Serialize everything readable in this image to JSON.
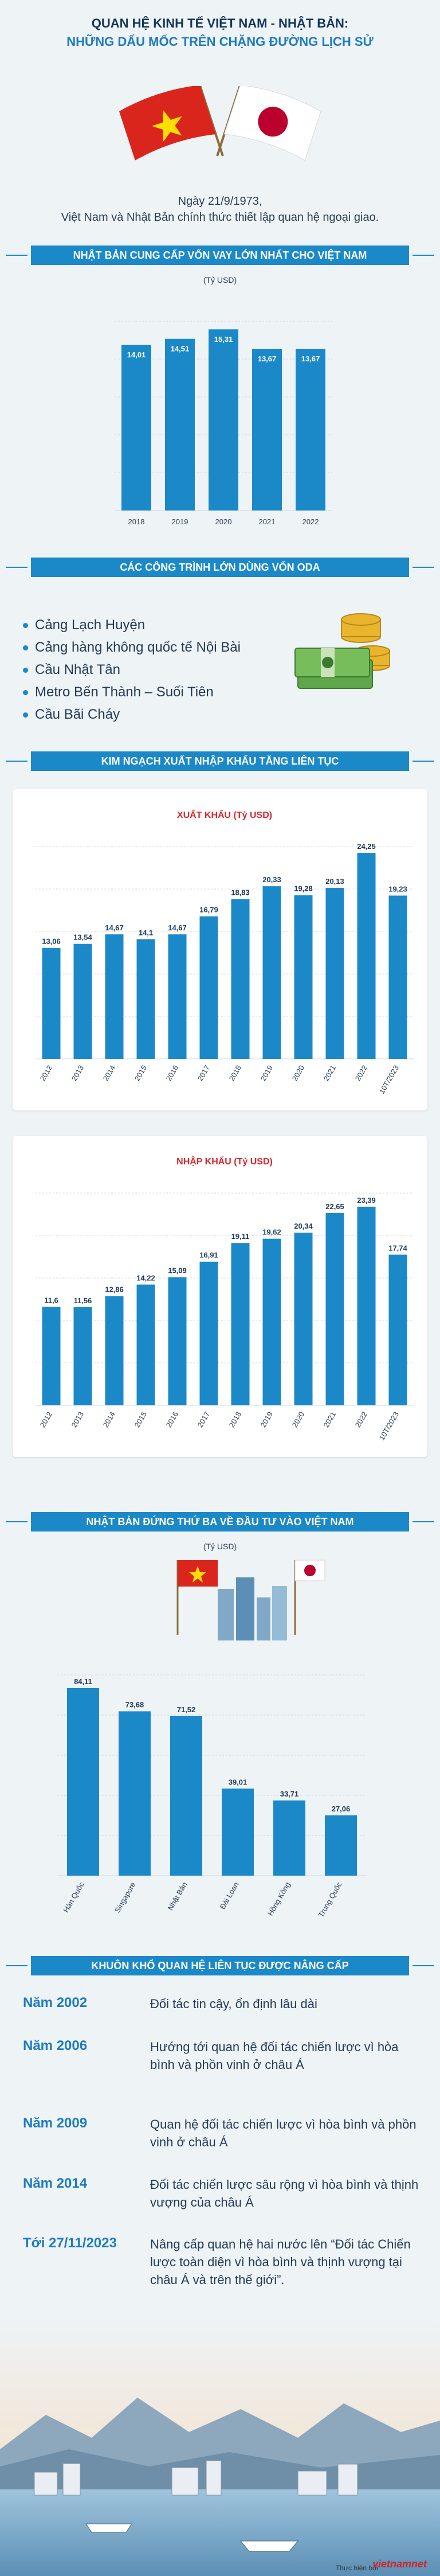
{
  "header": {
    "title": "QUAN HỆ KINH TẾ VIỆT NAM - NHẬT BẢN:",
    "subtitle": "NHỮNG DẤU MỐC TRÊN CHẶNG ĐƯỜNG LỊCH SỬ",
    "date_line": "Ngày 21/9/1973,",
    "intro_line": "Việt Nam và Nhật Bản chính thức thiết lập quan hệ ngoại giao."
  },
  "sections": {
    "loans": "NHẬT BẢN CUNG CẤP VỐN VAY LỚN NHẤT CHO VIỆT NAM",
    "oda": "CÁC CÔNG TRÌNH LỚN DÙNG VỐN ODA",
    "trade": "KIM NGẠCH XUẤT NHẬP KHẨU TĂNG LIÊN TỤC",
    "investment": "NHẬT BẢN ĐỨNG THỨ BA VỀ ĐẦU TƯ VÀO VIỆT NAM",
    "framework": "KHUÔN KHỔ QUAN HỆ LIÊN TỤC ĐƯỢC NÂNG CẤP"
  },
  "unit_label": "(Tỷ USD)",
  "oda_projects": [
    "Cảng Lạch Huyện",
    "Cảng hàng không quốc tế Nội Bài",
    "Cầu Nhật Tân",
    "Metro Bến Thành – Suối Tiên",
    "Cầu Bãi Cháy"
  ],
  "milestones": [
    {
      "year": "Năm 2002",
      "text": "Đối tác tin cậy, ổn định lâu dài"
    },
    {
      "year": "Năm 2006",
      "text": "Hướng tới quan hệ đối tác chiến lược vì hòa bình và phồn vinh ở châu Á"
    },
    {
      "year": "Năm 2009",
      "text": "Quan hệ đối tác chiến lược vì hòa bình và phồn vinh ở châu Á"
    },
    {
      "year": "Năm 2014",
      "text": "Đối tác chiến lược sâu rộng vì hòa bình và thịnh vượng của châu Á"
    },
    {
      "year": "Tới 27/11/2023",
      "text": "Nâng cấp quan hệ hai nước lên “Đối tác Chiến lược toàn diện vì hòa bình và thịnh vượng tại châu Á và trên thế giới”."
    }
  ],
  "footer": {
    "credit": "Thực hiện bởi",
    "logo": "vietnamnet"
  },
  "colors": {
    "bar": "#1b89c8",
    "accent": "#1e7bbf",
    "title": "#13365a",
    "flag_vn": "#da251d",
    "flag_jp_circle": "#bc002d"
  },
  "chart_data": [
    {
      "type": "bar",
      "title": "NHẬT BẢN CUNG CẤP VỐN VAY LỚN NHẤT CHO VIỆT NAM",
      "ylabel": "(Tỷ USD)",
      "categories": [
        "2018",
        "2019",
        "2020",
        "2021",
        "2022"
      ],
      "values": [
        14.01,
        14.51,
        15.31,
        13.67,
        13.67
      ],
      "labels": [
        "14,01",
        "14,51",
        "15,31",
        "13,67",
        "13,67"
      ],
      "ylim": [
        0,
        16
      ]
    },
    {
      "type": "bar",
      "title": "XUẤT KHẨU (Tỷ USD)",
      "categories": [
        "2012",
        "2013",
        "2014",
        "2015",
        "2016",
        "2017",
        "2018",
        "2019",
        "2020",
        "2021",
        "2022",
        "10T/2023"
      ],
      "values": [
        13.06,
        13.54,
        14.67,
        14.1,
        14.67,
        16.79,
        18.83,
        20.33,
        19.28,
        20.13,
        24.25,
        19.23
      ],
      "labels": [
        "13,06",
        "13,54",
        "14,67",
        "14,1",
        "14,67",
        "16,79",
        "18,83",
        "20,33",
        "19,28",
        "20,13",
        "24,25",
        "19,23"
      ],
      "ylim": [
        0,
        25
      ]
    },
    {
      "type": "bar",
      "title": "NHẬP KHẨU (Tỷ USD)",
      "categories": [
        "2012",
        "2013",
        "2014",
        "2015",
        "2016",
        "2017",
        "2018",
        "2019",
        "2020",
        "2021",
        "2022",
        "10T/2023"
      ],
      "values": [
        11.6,
        11.56,
        12.86,
        14.22,
        15.09,
        16.91,
        19.11,
        19.62,
        20.34,
        22.65,
        23.39,
        17.74
      ],
      "labels": [
        "11,6",
        "11,56",
        "12,86",
        "14,22",
        "15,09",
        "16,91",
        "19,11",
        "19,62",
        "20,34",
        "22,65",
        "23,39",
        "17,74"
      ],
      "ylim": [
        0,
        25
      ]
    },
    {
      "type": "bar",
      "title": "NHẬT BẢN ĐỨNG THỨ BA VỀ ĐẦU TƯ VÀO VIỆT NAM",
      "ylabel": "(Tỷ USD)",
      "categories": [
        "Hàn Quốc",
        "Singapore",
        "Nhật Bản",
        "Đài Loan",
        "Hồng Kông",
        "Trung Quốc"
      ],
      "values": [
        84.11,
        73.68,
        71.52,
        39.01,
        33.71,
        27.06
      ],
      "labels": [
        "84,11",
        "73,68",
        "71,52",
        "39,01",
        "33,71",
        "27,06"
      ],
      "ylim": [
        0,
        90
      ]
    }
  ]
}
